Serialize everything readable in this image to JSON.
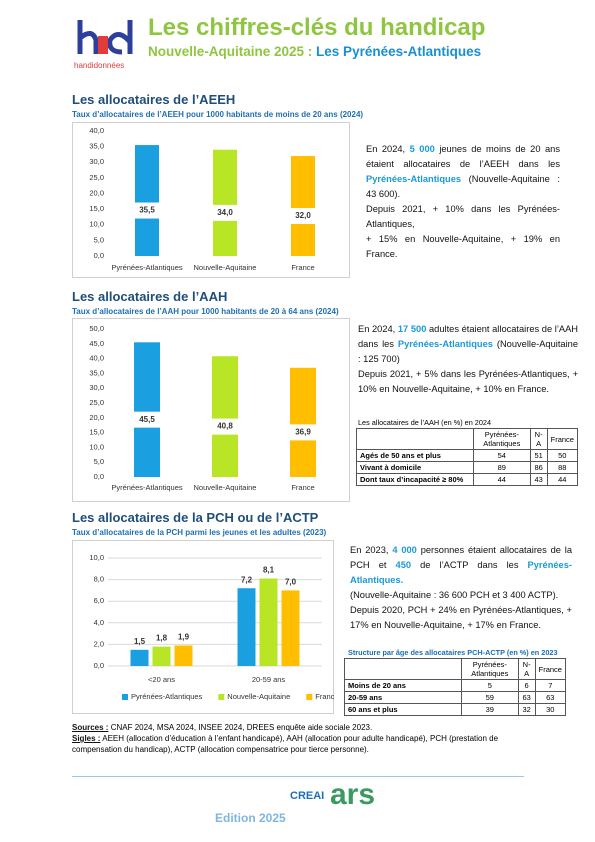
{
  "header": {
    "logo": "handidonnées",
    "title": "Les chiffres-clés du handicap",
    "subtitle": "Nouvelle-Aquitaine 2025 : ",
    "territory": "Les Pyrénées-Atlantiques"
  },
  "sections": [
    {
      "heading": "Les allocataires de l’AEEH",
      "text": [
        [
          "En 2024, ",
          "5 000",
          " jeunes de moins de 20 ans étaient allocataires de l’AEEH dans les ",
          "Pyrénées-Atlantiques",
          " (Nouvelle-Aquitaine : 43 600)."
        ],
        [
          "Depuis 2021, + 10% dans les Pyrénées-Atlantiques,"
        ],
        [
          "+ 15% en Nouvelle-Aquitaine, + 19% en France."
        ]
      ]
    },
    {
      "heading": "Les allocataires de l’AAH",
      "text": [
        [
          "En 2024, ",
          "17 500",
          " adultes étaient allocataires de l’AAH dans les ",
          "Pyrénées-Atlantiques",
          " (Nouvelle-Aquitaine : 125 700)"
        ],
        [
          "Depuis 2021, + 5% dans les Pyrénées-Atlantiques, + 10% en Nouvelle-Aquitaine, + 10% en France."
        ]
      ],
      "table": {
        "title": "Les allocataires de l’AAH (en %) en 2024",
        "columns": [
          "Pyrénées-Atlantiques",
          "N-A",
          "France"
        ],
        "rows": [
          [
            "Agés de 50 ans et plus",
            54,
            51,
            50
          ],
          [
            "Vivant à domicile",
            89,
            86,
            88
          ],
          [
            "Dont taux d’incapacité ≥ 80%",
            44,
            43,
            44
          ]
        ]
      }
    },
    {
      "heading": "Les allocataires de la PCH ou de l’ACTP",
      "text": [
        [
          "En 2023, ",
          "4 000",
          " personnes étaient allocataires de la PCH et ",
          "450",
          " de l’ACTP dans les ",
          "Pyrénées-Atlantiques."
        ],
        [
          "(Nouvelle-Aquitaine : 36 600 PCH et 3 400 ACTP)."
        ],
        [
          "Depuis 2020, PCH + 24% en Pyrénées-Atlantiques, + 17% en Nouvelle-Aquitaine, + 17% en France."
        ]
      ],
      "table": {
        "title": "Structure par âge des allocataires PCH-ACTP (en %) en 2023",
        "columns": [
          "Pyrénées-Atlantiques",
          "N-A",
          "France"
        ],
        "rows": [
          [
            "Moins de 20 ans",
            5,
            6,
            7
          ],
          [
            "20-59 ans",
            59,
            63,
            63
          ],
          [
            "60 ans et plus",
            39,
            32,
            30
          ]
        ]
      }
    }
  ],
  "chart_data": [
    {
      "type": "bar",
      "title": "Taux d’allocataires de l’AEEH pour 1000 habitants de moins de 20 ans (2024)",
      "categories": [
        "Pyrénées-Atlantiques",
        "Nouvelle-Aquitaine",
        "France"
      ],
      "values": [
        35.5,
        34.0,
        32.0
      ],
      "value_labels": [
        "35,5",
        "34,0",
        "32,0"
      ],
      "colors": [
        "#1aa0e0",
        "#b8e626",
        "#ffbf00"
      ],
      "ylim": [
        0,
        40
      ],
      "yticks": [
        {
          "value": 0,
          "label": "0,0"
        },
        {
          "value": 5,
          "label": "5,0"
        },
        {
          "value": 10,
          "label": "10,0"
        },
        {
          "value": 15,
          "label": "15,0"
        },
        {
          "value": 20,
          "label": "20,0"
        },
        {
          "value": 25,
          "label": "25,0"
        },
        {
          "value": 30,
          "label": "30,0"
        },
        {
          "value": 35,
          "label": "35,0"
        },
        {
          "value": 40,
          "label": "40,0"
        }
      ],
      "grid": false
    },
    {
      "type": "bar",
      "title": "Taux d’allocataires de l’AAH pour 1000 habitants de 20 à 64 ans (2024)",
      "categories": [
        "Pyrénées-Atlantiques",
        "Nouvelle-Aquitaine",
        "France"
      ],
      "values": [
        45.5,
        40.8,
        36.9
      ],
      "value_labels": [
        "45,5",
        "40,8",
        "36,9"
      ],
      "colors": [
        "#1aa0e0",
        "#b8e626",
        "#ffbf00"
      ],
      "ylim": [
        0,
        50
      ],
      "yticks": [
        {
          "value": 0,
          "label": "0,0"
        },
        {
          "value": 5,
          "label": "5,0"
        },
        {
          "value": 10,
          "label": "10,0"
        },
        {
          "value": 15,
          "label": "15,0"
        },
        {
          "value": 20,
          "label": "20,0"
        },
        {
          "value": 25,
          "label": "25,0"
        },
        {
          "value": 30,
          "label": "30,0"
        },
        {
          "value": 35,
          "label": "35,0"
        },
        {
          "value": 40,
          "label": "40,0"
        },
        {
          "value": 45,
          "label": "45,0"
        },
        {
          "value": 50,
          "label": "50,0"
        }
      ],
      "grid": false
    },
    {
      "type": "bar",
      "title": "Taux d’allocataires de la PCH parmi les jeunes et les adultes (2023)",
      "categories": [
        "<20 ans",
        "20-59 ans"
      ],
      "series": [
        {
          "name": "Pyrénées-Atlantiques",
          "color": "#1aa0e0",
          "values": [
            1.5,
            7.2
          ],
          "value_labels": [
            "1,5",
            "7,2"
          ]
        },
        {
          "name": "Nouvelle-Aquitaine",
          "color": "#b8e626",
          "values": [
            1.8,
            8.1
          ],
          "value_labels": [
            "1,8",
            "8,1"
          ]
        },
        {
          "name": "France",
          "color": "#ffbf00",
          "values": [
            1.9,
            7.0
          ],
          "value_labels": [
            "1,9",
            "7,0"
          ]
        }
      ],
      "ylim": [
        0,
        10
      ],
      "yticks": [
        {
          "value": 0,
          "label": "0,0"
        },
        {
          "value": 2,
          "label": "2,0"
        },
        {
          "value": 4,
          "label": "4,0"
        },
        {
          "value": 6,
          "label": "6,0"
        },
        {
          "value": 8,
          "label": "8,0"
        },
        {
          "value": 10,
          "label": "10,0"
        }
      ],
      "grid": true,
      "legend": "bottom"
    }
  ],
  "footer": {
    "sources_label": "Sources :",
    "sources": " CNAF 2024, MSA 2024, INSEE 2024, DREES enquête aide sociale 2023.",
    "sigles_label": "Sigles :",
    "sigles": " AEEH (allocation d’éducation à l’enfant handicapé), AAH (allocation pour adulte handicapé), PCH (prestation de compensation du handicap), ACTP (allocation compensatrice pour tierce personne).",
    "creai": "CREAI",
    "ars": "ars",
    "edition": "Edition 2025"
  }
}
